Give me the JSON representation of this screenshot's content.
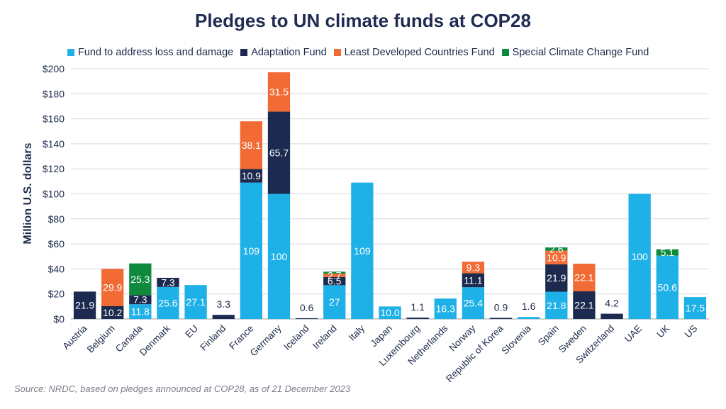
{
  "chart_data": {
    "type": "bar",
    "stacked": true,
    "title": "Pledges to UN climate funds at COP28",
    "ylabel": "Million U.S. dollars",
    "xlabel": "",
    "ylim": [
      0,
      200
    ],
    "yticks": [
      "$0",
      "$20",
      "$40",
      "$60",
      "$80",
      "$100",
      "$120",
      "$140",
      "$160",
      "$180",
      "$200"
    ],
    "grid": true,
    "legend_position": "top",
    "categories": [
      "Austria",
      "Belgium",
      "Canada",
      "Denmark",
      "EU",
      "Finland",
      "France",
      "Germany",
      "Iceland",
      "Ireland",
      "Italy",
      "Japan",
      "Luxembourg",
      "Netherlands",
      "Norway",
      "Republic of Korea",
      "Slovenia",
      "Spain",
      "Sweden",
      "Switzerland",
      "UAE",
      "UK",
      "US"
    ],
    "series": [
      {
        "name": "Fund to address loss and damage",
        "color": "#1eb1e7",
        "values": [
          0,
          0,
          11.8,
          25.6,
          27.1,
          0,
          109,
          100,
          0,
          27,
          109,
          10.0,
          0,
          16.3,
          25.4,
          0,
          1.6,
          21.8,
          0,
          0,
          100,
          50.6,
          17.5
        ],
        "labels": [
          "",
          "",
          "11.8",
          "25.6",
          "27.1",
          "",
          "109",
          "100",
          "",
          "27",
          "109",
          "10.0",
          "",
          "16.3",
          "25.4",
          "",
          "",
          "21.8",
          "",
          "",
          "100",
          "50.6",
          "17.5"
        ]
      },
      {
        "name": "Adaptation Fund",
        "color": "#1b2a4e",
        "values": [
          21.9,
          10.2,
          7.3,
          7.3,
          0,
          3.3,
          10.9,
          65.7,
          0.6,
          6.5,
          0,
          0,
          1.1,
          0,
          11.1,
          0.9,
          0,
          21.9,
          22.1,
          4.2,
          0,
          0,
          0
        ],
        "labels": [
          "21.9",
          "10.2",
          "7.3",
          "7.3",
          "",
          "",
          "10.9",
          "65.7",
          "",
          "6.5",
          "",
          "",
          "",
          "",
          "11.1",
          "",
          "",
          "21.9",
          "22.1",
          "",
          "",
          "",
          ""
        ]
      },
      {
        "name": "Least Developed Countries Fund",
        "color": "#f26b35",
        "values": [
          0,
          29.9,
          0,
          0,
          0,
          0,
          38.1,
          31.5,
          0,
          2.7,
          0,
          0,
          0,
          0,
          9.3,
          0,
          0,
          10.9,
          22.1,
          0,
          0,
          0,
          0
        ],
        "labels": [
          "",
          "29.9",
          "",
          "",
          "",
          "",
          "38.1",
          "31.5",
          "",
          "2.7",
          "",
          "",
          "",
          "",
          "9.3",
          "",
          "",
          "10.9",
          "22.1",
          "",
          "",
          "",
          ""
        ]
      },
      {
        "name": "Special Climate Change Fund",
        "color": "#0f8a3c",
        "values": [
          0,
          0,
          25.3,
          0,
          0,
          0,
          0,
          0,
          0,
          1.6,
          0,
          0,
          0,
          0,
          0,
          0,
          0,
          2.6,
          0,
          0,
          0,
          5.1,
          0
        ],
        "labels": [
          "",
          "",
          "25.3",
          "",
          "",
          "",
          "",
          "",
          "",
          "",
          "",
          "",
          "",
          "",
          "",
          "",
          "",
          "2.6",
          "",
          "",
          "",
          "5.1",
          ""
        ]
      }
    ],
    "outside_labels": [
      "",
      "",
      "",
      "",
      "",
      "3.3",
      "",
      "",
      "0.6",
      "",
      "",
      "",
      "1.1",
      "",
      "",
      "0.9",
      "1.6",
      "",
      "",
      "4.2",
      "",
      "",
      ""
    ],
    "source": "Source: NRDC, based on pledges announced at COP28, as of 21 December 2023"
  }
}
